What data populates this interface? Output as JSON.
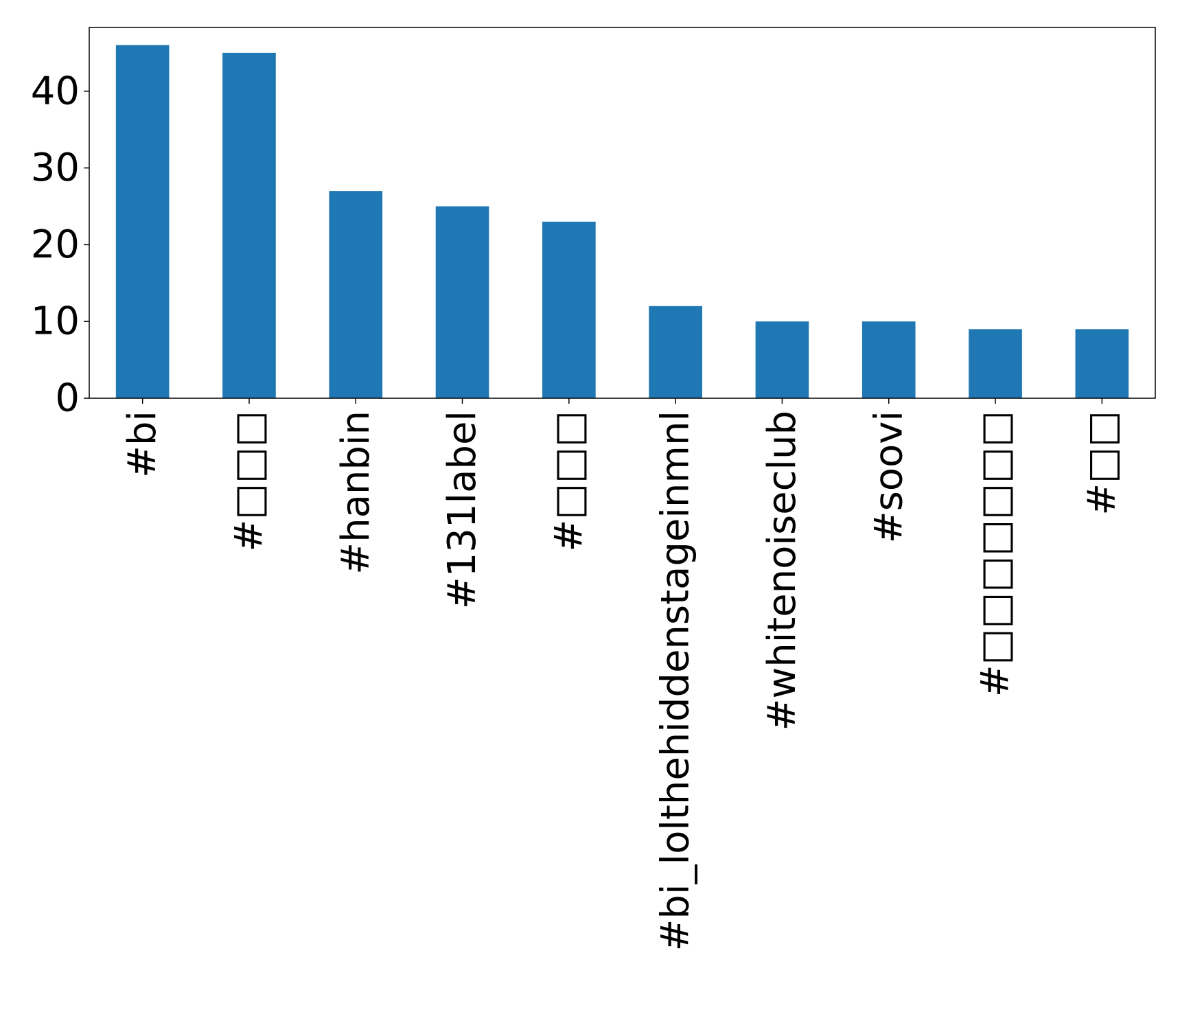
{
  "chart_data": {
    "type": "bar",
    "categories": [
      "#bi",
      "#□□□",
      "#hanbin",
      "#131label",
      "#□□□",
      "#bi_lolthehiddenstageinmnl",
      "#whitenoiseclub",
      "#soovi",
      "#□□□□□□□",
      "#□□"
    ],
    "values": [
      46,
      45,
      27,
      25,
      23,
      12,
      10,
      10,
      9,
      9
    ],
    "yticks": [
      0,
      10,
      20,
      30,
      40
    ],
    "ylim": [
      0,
      48.3
    ],
    "title": "",
    "xlabel": "",
    "ylabel": "",
    "grid": false,
    "legend": "none",
    "bar_color": "#1f77b4"
  }
}
